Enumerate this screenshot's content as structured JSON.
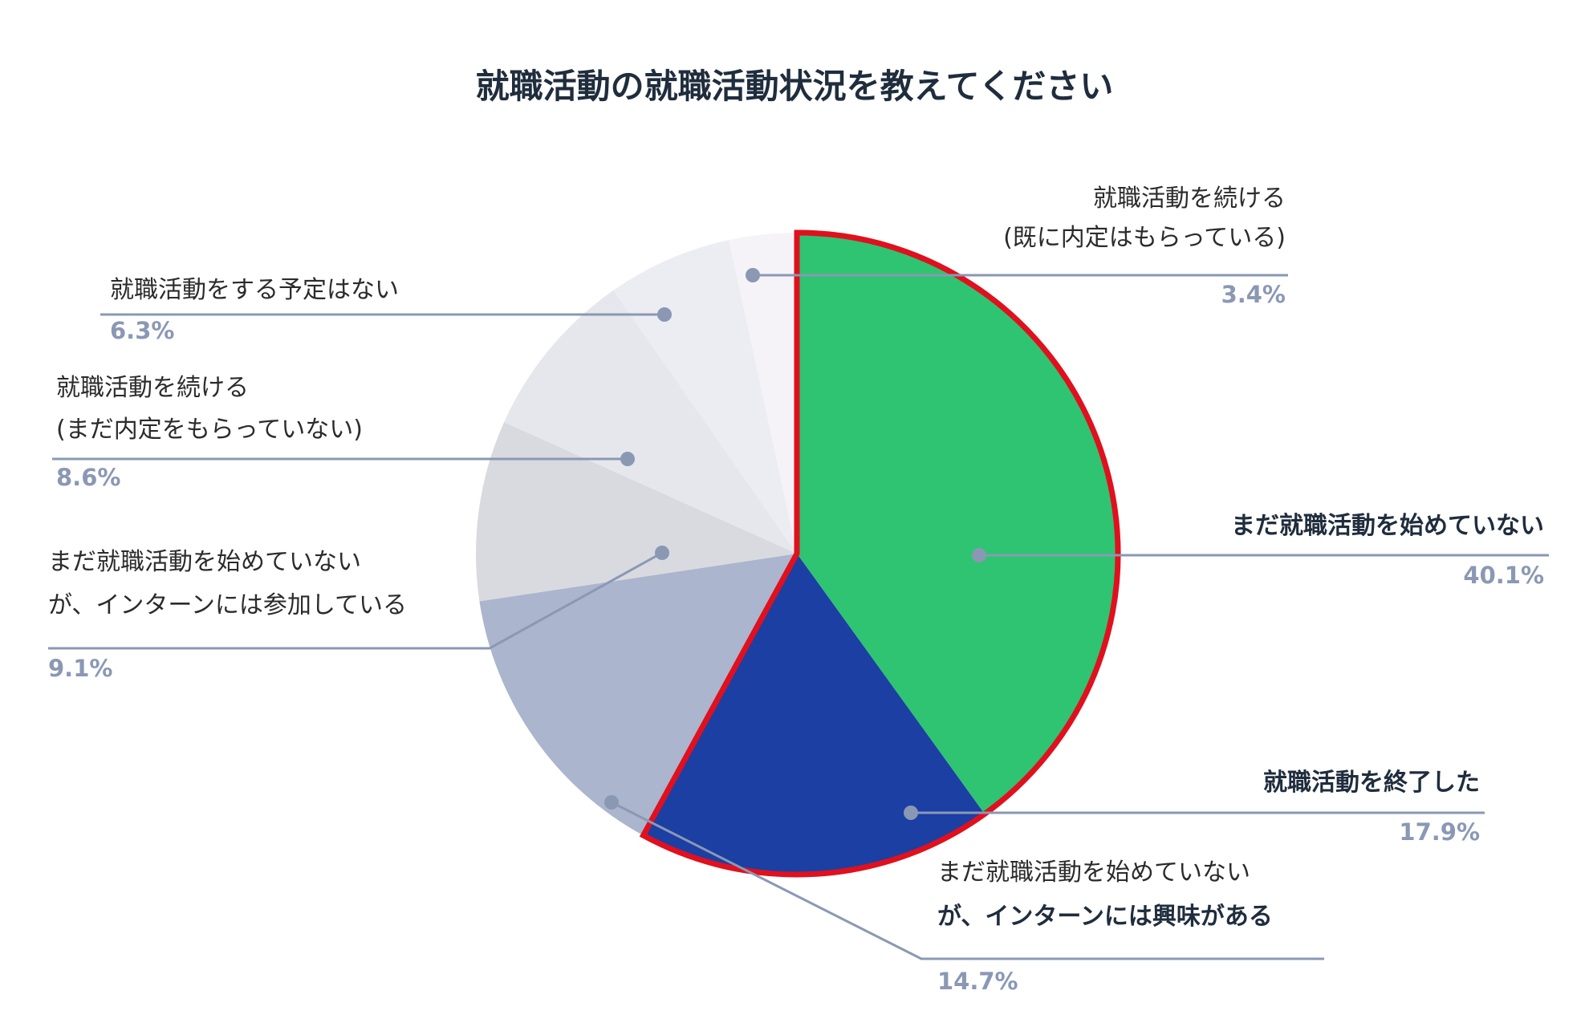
{
  "chart_data": {
    "type": "pie",
    "title": "就職活動の就職活動状況を教えてください",
    "slices": [
      {
        "lines": [
          "まだ就職活動を始めていない"
        ],
        "bold": [
          true
        ],
        "value": 40.1,
        "value_label": "40.1%",
        "color": "#2ec472",
        "highlight": true
      },
      {
        "lines": [
          "就職活動を終了した"
        ],
        "bold": [
          true
        ],
        "value": 17.9,
        "value_label": "17.9%",
        "color": "#1b3fa3",
        "highlight": true
      },
      {
        "lines": [
          "まだ就職活動を始めていない",
          "が、インターンには興味がある"
        ],
        "bold": [
          false,
          true
        ],
        "value": 14.7,
        "value_label": "14.7%",
        "color": "#abb5cd",
        "highlight": false
      },
      {
        "lines": [
          "まだ就職活動を始めていない",
          "が、インターンには参加している"
        ],
        "bold": [
          false,
          false
        ],
        "value": 9.1,
        "value_label": "9.1%",
        "color": "#d9dae0",
        "highlight": false
      },
      {
        "lines": [
          "就職活動を続ける",
          "(まだ内定をもらっていない)"
        ],
        "bold": [
          false,
          false
        ],
        "value": 8.6,
        "value_label": "8.6%",
        "color": "#e6e7ec",
        "highlight": false
      },
      {
        "lines": [
          "就職活動をする予定はない"
        ],
        "bold": [
          false
        ],
        "value": 6.3,
        "value_label": "6.3%",
        "color": "#ececf3",
        "highlight": false
      },
      {
        "lines": [
          "就職活動を続ける",
          "(既に内定はもらっている)"
        ],
        "bold": [
          false,
          false
        ],
        "value": 3.4,
        "value_label": "3.4%",
        "color": "#f5f3f8",
        "highlight": false
      }
    ],
    "highlight_color": "#e0101e",
    "leader_color": "#8a98b4",
    "start_angle_deg": 0,
    "direction": "clockwise"
  }
}
